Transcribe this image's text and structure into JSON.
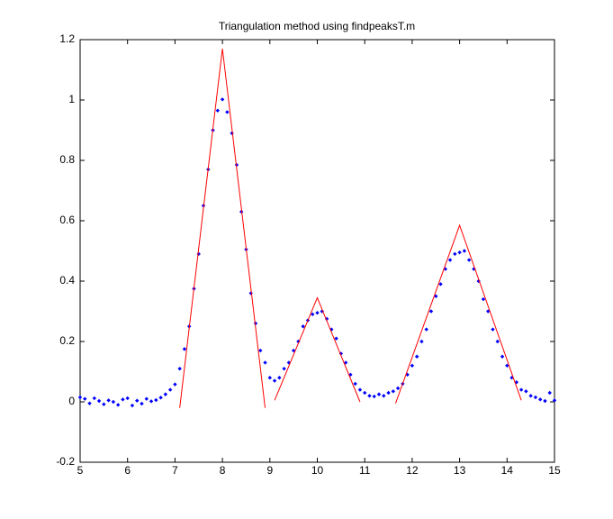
{
  "chart_data": {
    "type": "scatter",
    "title": "Triangulation method using findpeaksT.m",
    "xlim": [
      5,
      15
    ],
    "ylim": [
      -0.2,
      1.2
    ],
    "xticks": [
      5,
      6,
      7,
      8,
      9,
      10,
      11,
      12,
      13,
      14,
      15
    ],
    "yticks": [
      -0.2,
      0,
      0.2,
      0.4,
      0.6,
      0.8,
      1,
      1.2
    ],
    "grid": false,
    "series": [
      {
        "style": "markers",
        "color": "#0000ff",
        "x": [
          5.0,
          5.1,
          5.2,
          5.3,
          5.4,
          5.5,
          5.6,
          5.7,
          5.8,
          5.9,
          6.0,
          6.1,
          6.2,
          6.3,
          6.4,
          6.5,
          6.6,
          6.7,
          6.8,
          6.9,
          7.0,
          7.1,
          7.2,
          7.3,
          7.4,
          7.5,
          7.6,
          7.7,
          7.8,
          7.9,
          8.0,
          8.1,
          8.2,
          8.3,
          8.4,
          8.5,
          8.6,
          8.7,
          8.8,
          8.9,
          9.0,
          9.1,
          9.2,
          9.3,
          9.4,
          9.5,
          9.6,
          9.7,
          9.8,
          9.9,
          10.0,
          10.1,
          10.2,
          10.3,
          10.4,
          10.5,
          10.6,
          10.7,
          10.8,
          10.9,
          11.0,
          11.1,
          11.2,
          11.3,
          11.4,
          11.5,
          11.6,
          11.7,
          11.8,
          11.9,
          12.0,
          12.1,
          12.2,
          12.3,
          12.4,
          12.5,
          12.6,
          12.7,
          12.8,
          12.9,
          13.0,
          13.1,
          13.2,
          13.3,
          13.4,
          13.5,
          13.6,
          13.7,
          13.8,
          13.9,
          14.0,
          14.1,
          14.2,
          14.3,
          14.4,
          14.5,
          14.6,
          14.7,
          14.8,
          14.9,
          15.0
        ],
        "values": [
          0.015,
          0.01,
          -0.005,
          0.012,
          0.003,
          -0.008,
          0.005,
          0.0,
          -0.01,
          0.008,
          0.012,
          -0.012,
          0.004,
          -0.006,
          0.01,
          0.002,
          0.006,
          0.014,
          0.025,
          0.04,
          0.058,
          0.11,
          0.175,
          0.25,
          0.375,
          0.49,
          0.65,
          0.77,
          0.9,
          0.965,
          1.002,
          0.96,
          0.89,
          0.785,
          0.63,
          0.505,
          0.36,
          0.26,
          0.17,
          0.13,
          0.08,
          0.07,
          0.08,
          0.11,
          0.13,
          0.17,
          0.2,
          0.25,
          0.27,
          0.29,
          0.295,
          0.3,
          0.275,
          0.24,
          0.21,
          0.16,
          0.13,
          0.09,
          0.06,
          0.04,
          0.03,
          0.02,
          0.018,
          0.025,
          0.02,
          0.03,
          0.035,
          0.045,
          0.06,
          0.09,
          0.12,
          0.15,
          0.2,
          0.24,
          0.3,
          0.35,
          0.39,
          0.44,
          0.47,
          0.49,
          0.495,
          0.5,
          0.47,
          0.44,
          0.4,
          0.34,
          0.3,
          0.24,
          0.2,
          0.15,
          0.12,
          0.08,
          0.065,
          0.04,
          0.035,
          0.02,
          0.015,
          0.008,
          0.003,
          0.03,
          0.005
        ]
      },
      {
        "style": "line",
        "color": "#ff0000",
        "x": [
          7.1,
          8.0,
          8.9,
          null,
          9.1,
          10.0,
          10.9,
          null,
          11.65,
          13.0,
          14.3
        ],
        "values": [
          -0.02,
          1.17,
          -0.02,
          null,
          0.005,
          0.345,
          0.0,
          null,
          -0.005,
          0.585,
          0.005
        ]
      }
    ]
  }
}
